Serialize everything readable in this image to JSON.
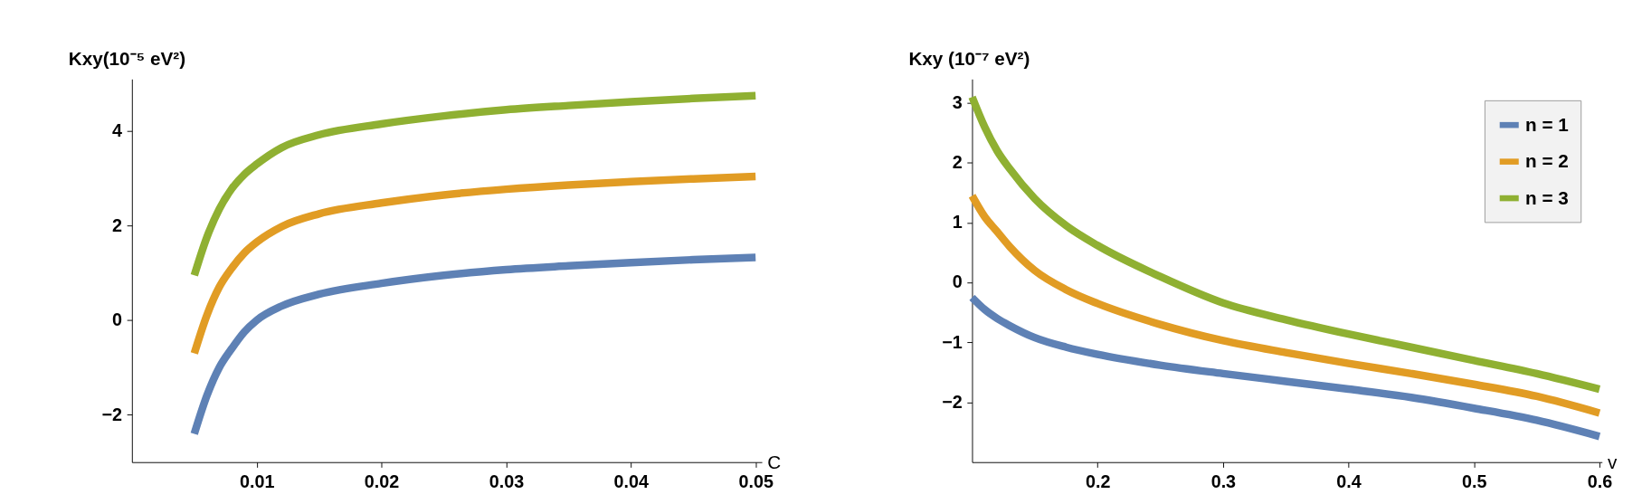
{
  "chart_data": [
    {
      "type": "line",
      "xlabel": "C",
      "ylabel": "Kxy(10⁻⁵ eV²)",
      "xlim": [
        0,
        0.0505
      ],
      "ylim": [
        -3,
        5.1
      ],
      "xticks": [
        0.01,
        0.02,
        0.03,
        0.04,
        0.05
      ],
      "yticks": [
        -2,
        0,
        2,
        4
      ],
      "grid": false,
      "legend": false,
      "x": [
        0.005,
        0.006,
        0.007,
        0.008,
        0.009,
        0.01,
        0.012,
        0.015,
        0.02,
        0.025,
        0.03,
        0.035,
        0.04,
        0.045,
        0.05
      ],
      "series": [
        {
          "color": "#5e81b5",
          "values": [
            -2.4,
            -1.6,
            -1.0,
            -0.6,
            -0.25,
            0.0,
            0.3,
            0.55,
            0.78,
            0.95,
            1.07,
            1.15,
            1.22,
            1.28,
            1.33
          ]
        },
        {
          "color": "#e19c24",
          "values": [
            -0.7,
            0.1,
            0.7,
            1.1,
            1.42,
            1.65,
            1.98,
            2.25,
            2.48,
            2.65,
            2.77,
            2.86,
            2.93,
            2.99,
            3.04
          ]
        },
        {
          "color": "#8fb032",
          "values": [
            0.95,
            1.75,
            2.35,
            2.78,
            3.08,
            3.3,
            3.65,
            3.92,
            4.15,
            4.32,
            4.45,
            4.54,
            4.62,
            4.69,
            4.75
          ]
        }
      ]
    },
    {
      "type": "line",
      "xlabel": "v",
      "ylabel": "Kxy (10⁻⁷ eV²)",
      "xlim": [
        0.1,
        0.602
      ],
      "ylim": [
        -3,
        3.4
      ],
      "xticks": [
        0.2,
        0.3,
        0.4,
        0.5,
        0.6
      ],
      "yticks": [
        -2,
        -1,
        0,
        1,
        2,
        3
      ],
      "grid": false,
      "legend": "top right",
      "x": [
        0.1,
        0.11,
        0.12,
        0.13,
        0.15,
        0.175,
        0.2,
        0.25,
        0.3,
        0.35,
        0.4,
        0.45,
        0.5,
        0.55,
        0.6
      ],
      "series": [
        {
          "name": "n = 1",
          "color": "#5e81b5",
          "values": [
            -0.25,
            -0.45,
            -0.6,
            -0.72,
            -0.92,
            -1.08,
            -1.2,
            -1.38,
            -1.52,
            -1.65,
            -1.78,
            -1.92,
            -2.1,
            -2.3,
            -2.57
          ]
        },
        {
          "name": "n = 2",
          "color": "#e19c24",
          "values": [
            1.45,
            1.1,
            0.85,
            0.6,
            0.2,
            -0.12,
            -0.35,
            -0.7,
            -0.97,
            -1.17,
            -1.35,
            -1.52,
            -1.7,
            -1.9,
            -2.18
          ]
        },
        {
          "name": "n = 3",
          "color": "#8fb032",
          "values": [
            3.1,
            2.6,
            2.2,
            1.9,
            1.4,
            0.95,
            0.62,
            0.1,
            -0.34,
            -0.62,
            -0.86,
            -1.08,
            -1.3,
            -1.52,
            -1.78
          ]
        }
      ]
    }
  ]
}
